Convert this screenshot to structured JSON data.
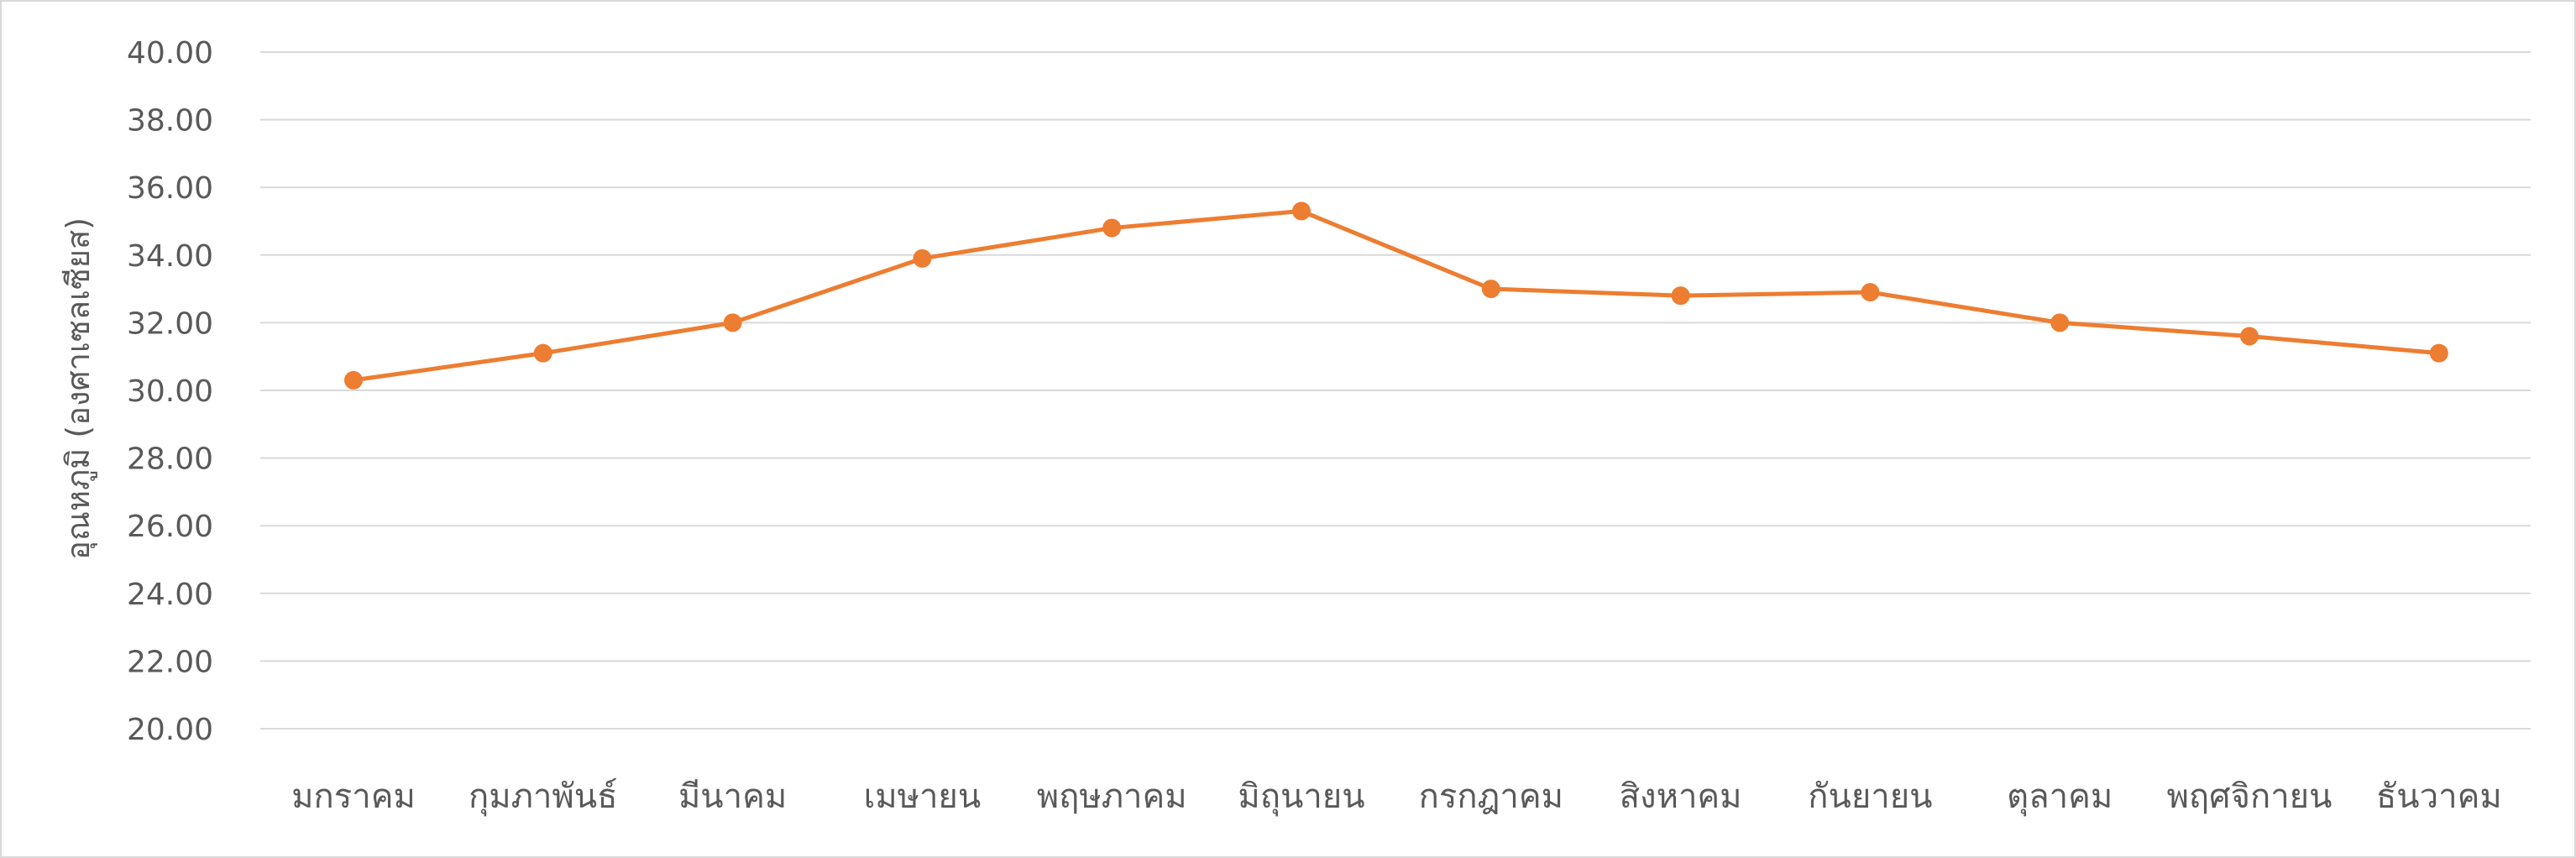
{
  "chart_data": {
    "type": "line",
    "title": "",
    "xlabel": "",
    "ylabel": "อุณหภูมิ (องศาเซลเซียส)",
    "ylim": [
      20,
      40
    ],
    "ytick_step": 2,
    "grid": true,
    "legend": "none",
    "colors": {
      "series": "#ED7D31",
      "grid": "#D9D9D9",
      "text": "#595959"
    },
    "categories": [
      "มกราคม",
      "กุมภาพันธ์",
      "มีนาคม",
      "เมษายน",
      "พฤษภาคม",
      "มิถุนายน",
      "กรกฎาคม",
      "สิงหาคม",
      "กันยายน",
      "ตุลาคม",
      "พฤศจิกายน",
      "ธันวาคม"
    ],
    "series": [
      {
        "values": [
          30.3,
          31.1,
          32.0,
          33.9,
          34.8,
          35.3,
          33.0,
          32.8,
          32.9,
          32.0,
          31.6,
          31.1
        ]
      }
    ]
  }
}
